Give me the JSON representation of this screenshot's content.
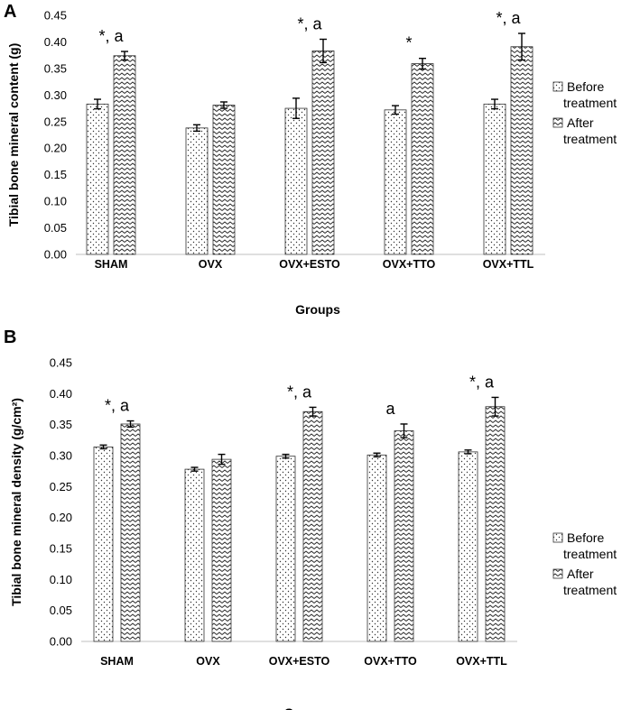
{
  "chart_data": [
    {
      "panel": "A",
      "type": "bar",
      "title": "",
      "xlabel": "Groups",
      "ylabel": "Tibial bone mineral content (g)",
      "ylim": [
        0,
        0.45
      ],
      "ytick_step": 0.05,
      "categories": [
        "SHAM",
        "OVX",
        "OVX+ESTO",
        "OVX+TTO",
        "OVX+TTL"
      ],
      "series": [
        {
          "name": "Before treatment",
          "legend_lines": [
            "Before",
            "treatment"
          ],
          "pattern": "dots",
          "values": [
            0.283,
            0.238,
            0.275,
            0.272,
            0.283
          ],
          "errors": [
            0.009,
            0.006,
            0.019,
            0.008,
            0.009
          ]
        },
        {
          "name": "After treatment",
          "legend_lines": [
            "After",
            "treatment"
          ],
          "pattern": "zigzag",
          "values": [
            0.374,
            0.281,
            0.383,
            0.359,
            0.391
          ],
          "errors": [
            0.008,
            0.006,
            0.022,
            0.01,
            0.025
          ]
        }
      ],
      "annotations": [
        "*, a",
        "",
        "*, a",
        "*",
        "*, a"
      ]
    },
    {
      "panel": "B",
      "type": "bar",
      "title": "",
      "xlabel": "Groups",
      "ylabel": "Tibial bone mineral density (g/cm²)",
      "ylim": [
        0,
        0.45
      ],
      "ytick_step": 0.05,
      "categories": [
        "SHAM",
        "OVX",
        "OVX+ESTO",
        "OVX+TTO",
        "OVX+TTL"
      ],
      "series": [
        {
          "name": "Before treatment",
          "legend_lines": [
            "Before",
            "treatment"
          ],
          "pattern": "dots",
          "values": [
            0.314,
            0.278,
            0.299,
            0.301,
            0.306
          ],
          "errors": [
            0.003,
            0.003,
            0.003,
            0.003,
            0.003
          ]
        },
        {
          "name": "After treatment",
          "legend_lines": [
            "After",
            "treatment"
          ],
          "pattern": "zigzag",
          "values": [
            0.351,
            0.294,
            0.371,
            0.34,
            0.379
          ],
          "errors": [
            0.005,
            0.008,
            0.007,
            0.011,
            0.015
          ]
        }
      ],
      "annotations": [
        "*, a",
        "",
        "*, a",
        "a",
        "*, a"
      ]
    }
  ],
  "panel_labels": {
    "a": "A",
    "b": "B"
  }
}
